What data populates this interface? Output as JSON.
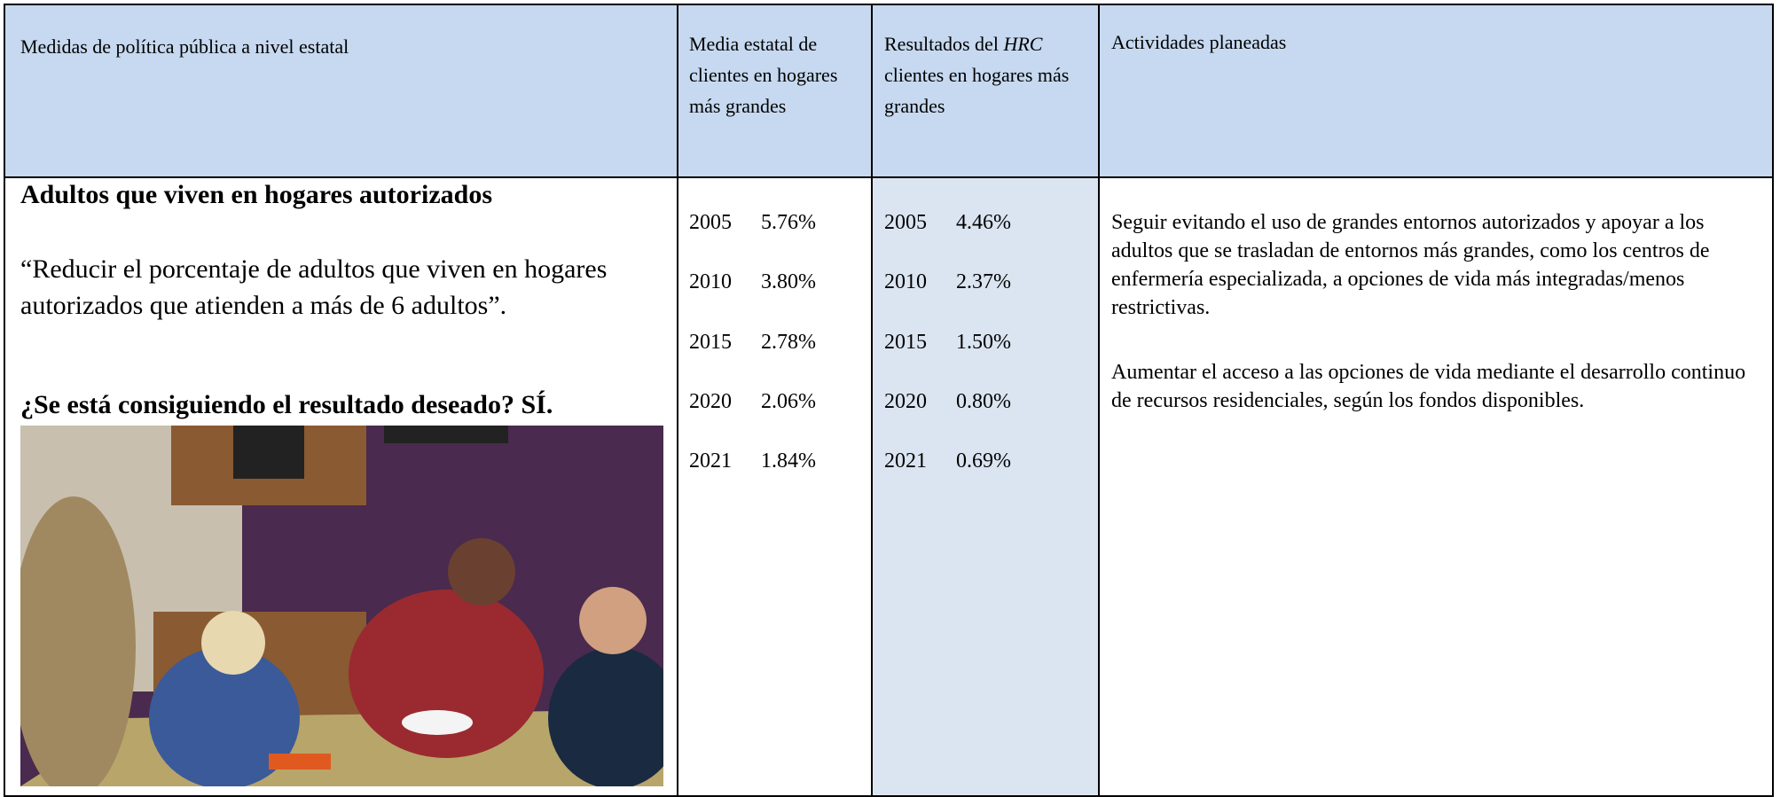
{
  "header": {
    "columns": [
      {
        "text": "Medidas de política pública a nivel estatal"
      },
      {
        "text": "Media estatal de clientes en hogares más grandes"
      },
      {
        "before": "Resultados del",
        "italic": "HRC",
        "after": "clientes en hogares más grandes"
      },
      {
        "text": "Actividades planeadas"
      }
    ]
  },
  "body": {
    "measure": {
      "title": "Adultos que viven en hogares autorizados",
      "quote": "“Reducir el porcentaje de adultos que viven en hogares autorizados que atienden a más de 6 adultos”.",
      "question": "¿Se está consiguiendo el resultado deseado? SÍ."
    },
    "state_average": [
      [
        "2005",
        "5.76%"
      ],
      [
        "2010",
        "3.80%"
      ],
      [
        "2015",
        "2.78%"
      ],
      [
        "2020",
        "2.06%"
      ],
      [
        "2021",
        "1.84%"
      ]
    ],
    "hrc_results": [
      [
        "2005",
        "4.46%"
      ],
      [
        "2010",
        "2.37%"
      ],
      [
        "2015",
        "1.50%"
      ],
      [
        "2020",
        "0.80%"
      ],
      [
        "2021",
        "0.69%"
      ]
    ],
    "activities": [
      "Seguir evitando el uso de grandes entornos autorizados y apoyar a los adultos que se trasladan de entornos más grandes, como los centros de enfermería especializada, a opciones de vida más integradas/menos restrictivas.",
      "Aumentar el acceso a las opciones de vida mediante el desarrollo continuo de recursos residenciales, según los fondos disponibles."
    ]
  }
}
